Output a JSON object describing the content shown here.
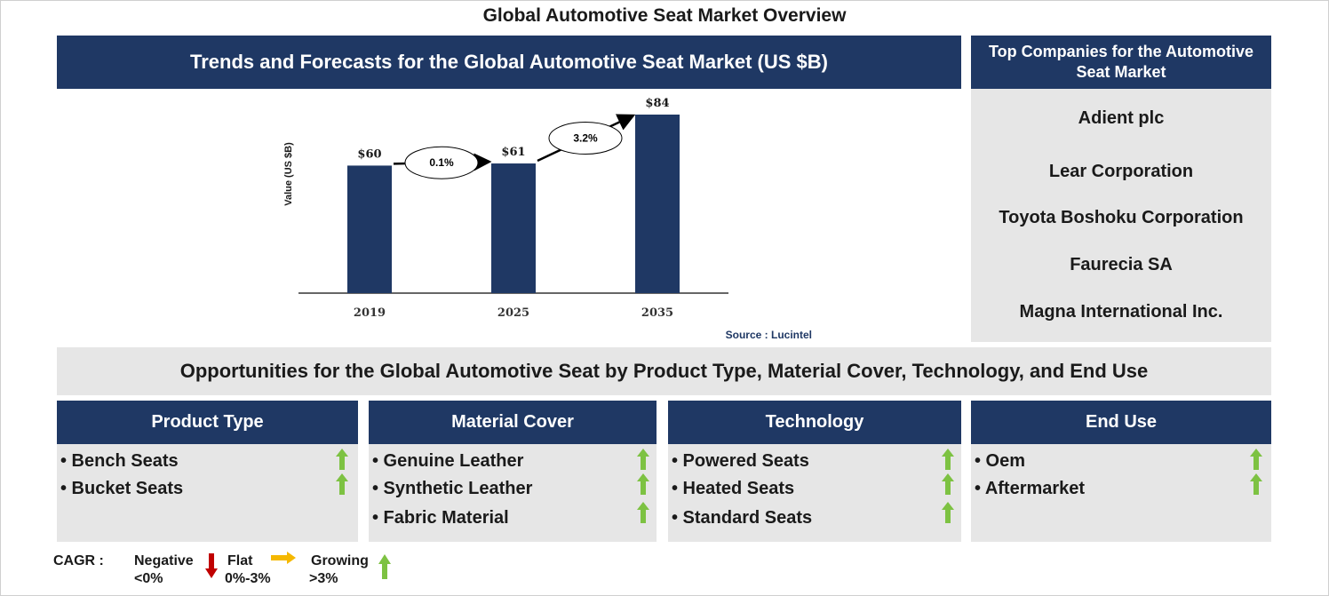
{
  "page_title": "Global Automotive Seat Market Overview",
  "chart_section_title": "Trends and Forecasts for the Global Automotive Seat Market (US $B)",
  "companies": {
    "title": "Top Companies for the Automotive Seat Market",
    "items": [
      "Adient plc",
      "Lear Corporation",
      "Toyota Boshoku Corporation",
      "Faurecia SA",
      "Magna International Inc."
    ]
  },
  "chart_data": {
    "type": "bar",
    "categories": [
      "2019",
      "2025",
      "2035"
    ],
    "values": [
      60,
      61,
      84
    ],
    "data_labels": [
      "$60",
      "$61",
      "$84"
    ],
    "ylabel": "Value (US $B)",
    "xlabel": "",
    "ylim": [
      0,
      84
    ],
    "cagr_annotations": [
      {
        "from": "2019",
        "to": "2025",
        "label": "0.1%"
      },
      {
        "from": "2025",
        "to": "2035",
        "label": "3.2%"
      }
    ],
    "source": "Source : Lucintel",
    "bar_color": "#1f3864",
    "grid": false
  },
  "opportunities_title": "Opportunities for the Global Automotive Seat by Product Type, Material Cover, Technology, and End Use",
  "segments": [
    {
      "title": "Product Type",
      "items": [
        {
          "label": "• Bench Seats",
          "trend": "growing"
        },
        {
          "label": "• Bucket Seats",
          "trend": "growing"
        }
      ]
    },
    {
      "title": "Material Cover",
      "items": [
        {
          "label": "• Genuine Leather",
          "trend": "growing"
        },
        {
          "label": "• Synthetic Leather",
          "trend": "growing"
        },
        {
          "label": "• Fabric Material",
          "trend": "growing"
        }
      ]
    },
    {
      "title": "Technology",
      "items": [
        {
          "label": "• Powered Seats",
          "trend": "growing"
        },
        {
          "label": "• Heated Seats",
          "trend": "growing"
        },
        {
          "label": "• Standard Seats",
          "trend": "growing"
        }
      ]
    },
    {
      "title": "End Use",
      "items": [
        {
          "label": "• Oem",
          "trend": "growing"
        },
        {
          "label": "• Aftermarket",
          "trend": "growing"
        }
      ]
    }
  ],
  "legend": {
    "cagr_label": "CAGR :",
    "negative": {
      "name": "Negative",
      "range": "<0%",
      "icon": "red-down-arrow-icon"
    },
    "flat": {
      "name": "Flat",
      "range": "0%-3%",
      "icon": "orange-right-arrow-icon"
    },
    "growing": {
      "name": "Growing",
      "range": ">3%",
      "icon": "green-up-arrow-icon"
    }
  },
  "colors": {
    "navy": "#1f3864",
    "panel_grey": "#e6e6e6",
    "growing_green": "#7dc242",
    "negative_red": "#c00000",
    "flat_orange": "#f5b800"
  }
}
